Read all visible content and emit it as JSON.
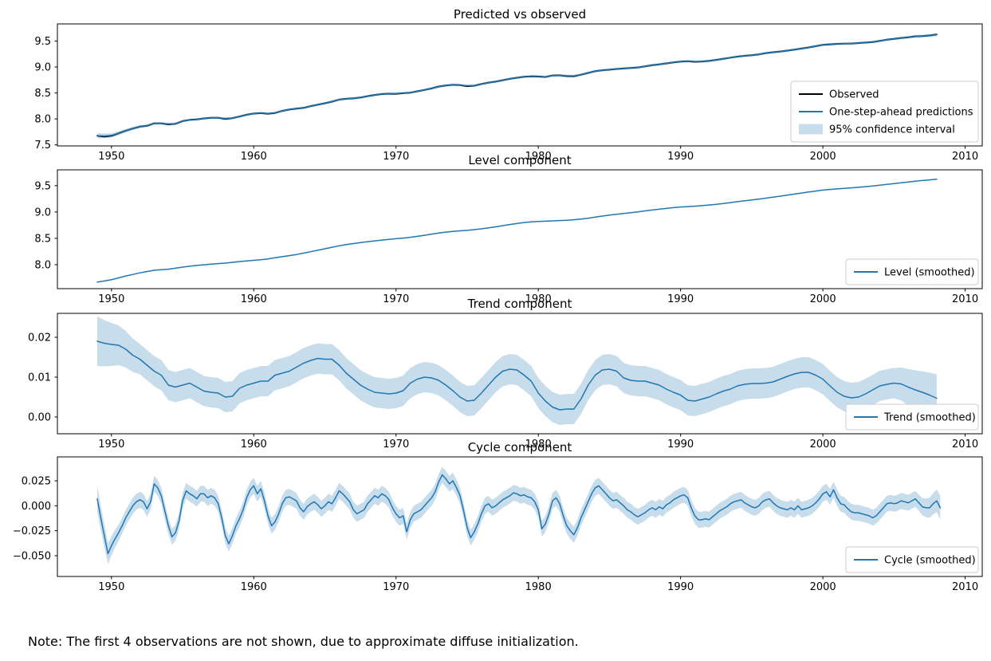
{
  "note": "Note: The first 4 observations are not shown, due to approximate diffuse initialization.",
  "colors": {
    "line_blue": "#1f77b4",
    "line_black": "#000000",
    "band_blue": "rgba(31,119,180,0.25)",
    "legend_border": "#cccccc",
    "axis": "#000000",
    "background": "#ffffff"
  },
  "chart_data": [
    {
      "id": "predicted-vs-observed",
      "type": "line",
      "title": "Predicted vs observed",
      "x_start": 1949.0,
      "x_step": 0.5,
      "xlim": [
        1946.2,
        2011.2
      ],
      "ylim": [
        7.48,
        9.83
      ],
      "xticks": [
        1950,
        1960,
        1970,
        1980,
        1990,
        2000,
        2010
      ],
      "xticklabels": [
        "1950",
        "1960",
        "1970",
        "1980",
        "1990",
        "2000",
        "2010"
      ],
      "yticks": [
        7.5,
        8.0,
        8.5,
        9.0,
        9.5
      ],
      "yticklabels": [
        "7.5",
        "8.0",
        "8.5",
        "9.0",
        "9.5"
      ],
      "grid": false,
      "series": [
        {
          "name": "Observed",
          "color": "#000000",
          "width": 2.0,
          "values": [
            7.677,
            7.66,
            7.675,
            7.723,
            7.773,
            7.815,
            7.851,
            7.867,
            7.915,
            7.915,
            7.895,
            7.906,
            7.958,
            7.982,
            7.992,
            8.01,
            8.02,
            8.022,
            8.0,
            8.015,
            8.047,
            8.08,
            8.103,
            8.112,
            8.1,
            8.114,
            8.154,
            8.181,
            8.198,
            8.212,
            8.247,
            8.274,
            8.302,
            8.332,
            8.372,
            8.388,
            8.396,
            8.412,
            8.438,
            8.462,
            8.479,
            8.486,
            8.484,
            8.495,
            8.506,
            8.532,
            8.558,
            8.588,
            8.624,
            8.645,
            8.657,
            8.652,
            8.63,
            8.639,
            8.672,
            8.7,
            8.718,
            8.746,
            8.772,
            8.794,
            8.811,
            8.82,
            8.816,
            8.808,
            8.837,
            8.84,
            8.824,
            8.823,
            8.852,
            8.886,
            8.92,
            8.938,
            8.948,
            8.962,
            8.972,
            8.982,
            8.992,
            9.013,
            9.035,
            9.052,
            9.069,
            9.088,
            9.104,
            9.111,
            9.1,
            9.106,
            9.118,
            9.137,
            9.157,
            9.18,
            9.201,
            9.215,
            9.227,
            9.244,
            9.268,
            9.284,
            9.298,
            9.316,
            9.336,
            9.356,
            9.377,
            9.401,
            9.427,
            9.437,
            9.446,
            9.449,
            9.452,
            9.461,
            9.471,
            9.482,
            9.503,
            9.526,
            9.541,
            9.559,
            9.572,
            9.59,
            9.596,
            9.608,
            9.627
          ]
        },
        {
          "name": "One-step-ahead predictions",
          "color": "#1f77b4",
          "width": 1.5,
          "values": [
            7.677,
            7.672,
            7.683,
            7.723,
            7.773,
            7.815,
            7.851,
            7.867,
            7.915,
            7.915,
            7.903,
            7.906,
            7.958,
            7.982,
            7.992,
            8.01,
            8.02,
            8.022,
            8.008,
            8.015,
            8.047,
            8.08,
            8.103,
            8.112,
            8.107,
            8.114,
            8.154,
            8.181,
            8.198,
            8.212,
            8.247,
            8.274,
            8.302,
            8.332,
            8.372,
            8.388,
            8.396,
            8.412,
            8.438,
            8.462,
            8.479,
            8.486,
            8.49,
            8.495,
            8.506,
            8.532,
            8.558,
            8.588,
            8.624,
            8.645,
            8.657,
            8.652,
            8.64,
            8.639,
            8.672,
            8.7,
            8.718,
            8.746,
            8.772,
            8.794,
            8.811,
            8.824,
            8.822,
            8.808,
            8.837,
            8.84,
            8.832,
            8.83,
            8.852,
            8.886,
            8.92,
            8.938,
            8.948,
            8.962,
            8.972,
            8.982,
            8.992,
            9.013,
            9.035,
            9.052,
            9.069,
            9.088,
            9.104,
            9.111,
            9.107,
            9.106,
            9.118,
            9.137,
            9.157,
            9.18,
            9.201,
            9.215,
            9.227,
            9.244,
            9.268,
            9.284,
            9.298,
            9.316,
            9.336,
            9.356,
            9.377,
            9.401,
            9.427,
            9.441,
            9.446,
            9.449,
            9.452,
            9.461,
            9.471,
            9.482,
            9.503,
            9.526,
            9.541,
            9.559,
            9.572,
            9.59,
            9.596,
            9.608,
            9.625
          ]
        }
      ],
      "band": {
        "label": "95% confidence interval",
        "center_series": 1,
        "halfwidth": 0.022,
        "start_halfwidth": 0.05,
        "end_halfwidth": 0.028,
        "taper": 8
      },
      "legend": {
        "location": "lower right",
        "entries": [
          {
            "label": "Observed",
            "swatch": "line",
            "color": "#000000"
          },
          {
            "label": "One-step-ahead predictions",
            "swatch": "line",
            "color": "#1f77b4"
          },
          {
            "label": "95% confidence interval",
            "swatch": "patch",
            "color": "rgba(31,119,180,0.25)"
          }
        ]
      }
    },
    {
      "id": "level-component",
      "type": "line",
      "title": "Level component",
      "x_start": 1949.0,
      "x_step": 0.5,
      "xlim": [
        1946.2,
        2011.2
      ],
      "ylim": [
        7.545,
        9.8
      ],
      "xticks": [
        1950,
        1960,
        1970,
        1980,
        1990,
        2000,
        2010
      ],
      "xticklabels": [
        "1950",
        "1960",
        "1970",
        "1980",
        "1990",
        "2000",
        "2010"
      ],
      "yticks": [
        8.0,
        8.5,
        9.0,
        9.5
      ],
      "yticklabels": [
        "8.0",
        "8.5",
        "9.0",
        "9.5"
      ],
      "grid": false,
      "series": [
        {
          "name": "Level (smoothed)",
          "color": "#1f77b4",
          "width": 1.5,
          "values": [
            7.67,
            7.69,
            7.715,
            7.75,
            7.785,
            7.815,
            7.845,
            7.87,
            7.893,
            7.905,
            7.915,
            7.933,
            7.953,
            7.97,
            7.985,
            7.998,
            8.01,
            8.02,
            8.03,
            8.045,
            8.06,
            8.072,
            8.083,
            8.095,
            8.11,
            8.13,
            8.152,
            8.172,
            8.193,
            8.218,
            8.245,
            8.273,
            8.302,
            8.33,
            8.357,
            8.38,
            8.4,
            8.418,
            8.436,
            8.452,
            8.467,
            8.48,
            8.492,
            8.505,
            8.52,
            8.538,
            8.558,
            8.58,
            8.6,
            8.618,
            8.632,
            8.642,
            8.652,
            8.665,
            8.68,
            8.698,
            8.718,
            8.74,
            8.762,
            8.782,
            8.8,
            8.812,
            8.82,
            8.826,
            8.832,
            8.838,
            8.844,
            8.852,
            8.864,
            8.882,
            8.902,
            8.922,
            8.94,
            8.956,
            8.972,
            8.988,
            9.003,
            9.02,
            9.037,
            9.053,
            9.068,
            9.082,
            9.094,
            9.103,
            9.11,
            9.12,
            9.132,
            9.145,
            9.16,
            9.178,
            9.196,
            9.212,
            9.228,
            9.244,
            9.262,
            9.281,
            9.3,
            9.32,
            9.34,
            9.36,
            9.379,
            9.398,
            9.415,
            9.428,
            9.438,
            9.448,
            9.458,
            9.468,
            9.48,
            9.494,
            9.509,
            9.524,
            9.539,
            9.554,
            9.569,
            9.583,
            9.597,
            9.61,
            9.622
          ]
        }
      ],
      "band": null,
      "legend": {
        "location": "lower right",
        "entries": [
          {
            "label": "Level (smoothed)",
            "swatch": "line",
            "color": "#1f77b4"
          }
        ]
      }
    },
    {
      "id": "trend-component",
      "type": "line",
      "title": "Trend component",
      "x_start": 1949.0,
      "x_step": 0.5,
      "xlim": [
        1946.2,
        2011.2
      ],
      "ylim": [
        -0.0042,
        0.026
      ],
      "xticks": [
        1950,
        1960,
        1970,
        1980,
        1990,
        2000,
        2010
      ],
      "xticklabels": [
        "1950",
        "1960",
        "1970",
        "1980",
        "1990",
        "2000",
        "2010"
      ],
      "yticks": [
        0.0,
        0.01,
        0.02
      ],
      "yticklabels": [
        "0.00",
        "0.01",
        "0.02"
      ],
      "grid": false,
      "series": [
        {
          "name": "Trend (smoothed)",
          "color": "#1f77b4",
          "width": 1.5,
          "values": [
            0.019,
            0.0185,
            0.0182,
            0.018,
            0.017,
            0.0155,
            0.0145,
            0.013,
            0.0115,
            0.0105,
            0.008,
            0.0075,
            0.008,
            0.0085,
            0.0075,
            0.0065,
            0.0062,
            0.006,
            0.005,
            0.0052,
            0.0072,
            0.008,
            0.0085,
            0.009,
            0.009,
            0.0105,
            0.011,
            0.0115,
            0.0125,
            0.0135,
            0.0142,
            0.0147,
            0.0145,
            0.0145,
            0.013,
            0.011,
            0.0095,
            0.008,
            0.007,
            0.0062,
            0.006,
            0.0058,
            0.006,
            0.0066,
            0.0085,
            0.0095,
            0.01,
            0.0098,
            0.0092,
            0.008,
            0.0066,
            0.005,
            0.004,
            0.0042,
            0.006,
            0.008,
            0.01,
            0.0115,
            0.012,
            0.0118,
            0.0105,
            0.009,
            0.006,
            0.004,
            0.0025,
            0.0018,
            0.002,
            0.002,
            0.0045,
            0.008,
            0.0105,
            0.0118,
            0.012,
            0.0115,
            0.0098,
            0.0092,
            0.009,
            0.009,
            0.0085,
            0.008,
            0.007,
            0.0062,
            0.0055,
            0.0042,
            0.004,
            0.0045,
            0.005,
            0.0058,
            0.0065,
            0.007,
            0.0078,
            0.0082,
            0.0084,
            0.0084,
            0.0085,
            0.0088,
            0.0095,
            0.0102,
            0.0108,
            0.0112,
            0.0112,
            0.0105,
            0.0095,
            0.0078,
            0.0062,
            0.0052,
            0.0048,
            0.005,
            0.0058,
            0.0068,
            0.0078,
            0.0082,
            0.0085,
            0.0083,
            0.0075,
            0.0068,
            0.0062,
            0.0055,
            0.0047
          ]
        }
      ],
      "band": {
        "label": "95% confidence interval",
        "center_series": 0,
        "halfwidth": 0.0038,
        "start_halfwidth": 0.0062,
        "end_halfwidth": 0.006,
        "taper": 6
      },
      "legend": {
        "location": "lower right",
        "entries": [
          {
            "label": "Trend (smoothed)",
            "swatch": "line",
            "color": "#1f77b4"
          }
        ]
      }
    },
    {
      "id": "cycle-component",
      "type": "line",
      "title": "Cycle component",
      "x_start": 1949.0,
      "x_step": 0.25,
      "xlim": [
        1946.2,
        2011.2
      ],
      "ylim": [
        -0.0708,
        0.049
      ],
      "xticks": [
        1950,
        1960,
        1970,
        1980,
        1990,
        2000,
        2010
      ],
      "xticklabels": [
        "1950",
        "1960",
        "1970",
        "1980",
        "1990",
        "2000",
        "2010"
      ],
      "yticks": [
        0.025,
        0.0,
        -0.025,
        -0.05
      ],
      "yticklabels": [
        "0.025",
        "0.000",
        "−0.025",
        "−0.050"
      ],
      "grid": false,
      "series": [
        {
          "name": "Cycle (smoothed)",
          "color": "#1f77b4",
          "width": 1.5,
          "values": [
            0.007,
            -0.012,
            -0.03,
            -0.048,
            -0.04,
            -0.033,
            -0.027,
            -0.02,
            -0.012,
            -0.006,
            0.0,
            0.004,
            0.006,
            0.004,
            -0.003,
            0.004,
            0.022,
            0.018,
            0.01,
            -0.005,
            -0.02,
            -0.031,
            -0.027,
            -0.015,
            0.005,
            0.015,
            0.012,
            0.01,
            0.007,
            0.012,
            0.012,
            0.008,
            0.01,
            0.008,
            0.002,
            -0.012,
            -0.03,
            -0.038,
            -0.03,
            -0.02,
            -0.013,
            -0.004,
            0.008,
            0.016,
            0.02,
            0.012,
            0.017,
            0.005,
            -0.01,
            -0.02,
            -0.016,
            -0.008,
            0.002,
            0.008,
            0.009,
            0.007,
            0.005,
            -0.002,
            -0.006,
            -0.001,
            0.002,
            0.004,
            0.001,
            -0.003,
            0.0,
            0.004,
            0.002,
            0.008,
            0.015,
            0.012,
            0.008,
            0.004,
            -0.004,
            -0.008,
            -0.006,
            -0.004,
            0.002,
            0.006,
            0.01,
            0.008,
            0.012,
            0.01,
            0.006,
            -0.002,
            -0.008,
            -0.012,
            -0.01,
            -0.026,
            -0.014,
            -0.008,
            -0.006,
            -0.004,
            0.0,
            0.004,
            0.008,
            0.014,
            0.024,
            0.031,
            0.027,
            0.022,
            0.025,
            0.018,
            0.01,
            -0.005,
            -0.022,
            -0.032,
            -0.026,
            -0.018,
            -0.008,
            0.0,
            0.002,
            -0.002,
            0.0,
            0.003,
            0.006,
            0.008,
            0.01,
            0.013,
            0.012,
            0.01,
            0.011,
            0.009,
            0.008,
            0.004,
            -0.004,
            -0.023,
            -0.018,
            -0.008,
            0.005,
            0.008,
            0.002,
            -0.01,
            -0.02,
            -0.025,
            -0.029,
            -0.022,
            -0.012,
            -0.004,
            0.004,
            0.012,
            0.018,
            0.02,
            0.016,
            0.012,
            0.008,
            0.005,
            0.006,
            0.003,
            0.0,
            -0.004,
            -0.006,
            -0.009,
            -0.011,
            -0.009,
            -0.007,
            -0.004,
            -0.002,
            -0.004,
            -0.001,
            -0.003,
            0.001,
            0.003,
            0.006,
            0.008,
            0.01,
            0.011,
            0.008,
            -0.002,
            -0.01,
            -0.014,
            -0.014,
            -0.013,
            -0.014,
            -0.011,
            -0.008,
            -0.005,
            -0.003,
            -0.001,
            0.002,
            0.004,
            0.005,
            0.006,
            0.003,
            0.001,
            -0.001,
            -0.002,
            0.0,
            0.004,
            0.006,
            0.007,
            0.003,
            0.0,
            -0.002,
            -0.003,
            -0.004,
            -0.002,
            -0.004,
            0.0,
            -0.004,
            -0.003,
            -0.002,
            0.0,
            0.003,
            0.007,
            0.012,
            0.014,
            0.009,
            0.016,
            0.008,
            0.002,
            0.001,
            -0.003,
            -0.006,
            -0.007,
            -0.007,
            -0.008,
            -0.009,
            -0.01,
            -0.012,
            -0.01,
            -0.006,
            -0.002,
            0.002,
            0.003,
            0.002,
            0.003,
            0.005,
            0.004,
            0.003,
            0.005,
            0.007,
            0.003,
            -0.001,
            -0.002,
            -0.002,
            0.002,
            0.005,
            -0.002
          ]
        }
      ],
      "band": {
        "label": "95% confidence interval",
        "center_series": 0,
        "halfwidth": 0.008,
        "start_halfwidth": 0.013,
        "end_halfwidth": 0.012,
        "taper": 6
      },
      "legend": {
        "location": "lower right",
        "entries": [
          {
            "label": "Cycle (smoothed)",
            "swatch": "line",
            "color": "#1f77b4"
          }
        ]
      }
    }
  ]
}
